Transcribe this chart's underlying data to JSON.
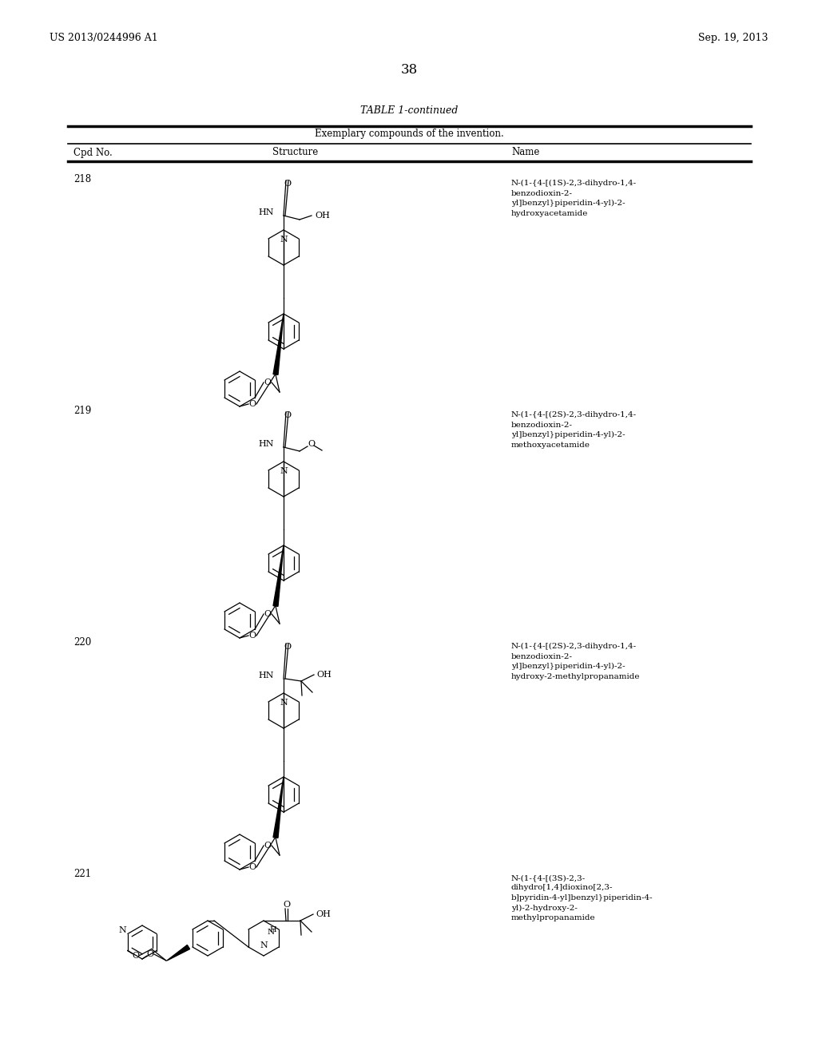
{
  "background_color": "#ffffff",
  "header_left": "US 2013/0244996 A1",
  "header_right": "Sep. 19, 2013",
  "page_number": "38",
  "table_title": "TABLE 1-continued",
  "table_subtitle": "Exemplary compounds of the invention.",
  "col_headers": [
    "Cpd No.",
    "Structure",
    "Name"
  ],
  "compounds": [
    {
      "number": "218",
      "name": "N-(1-{4-[(1S)-2,3-dihydro-1,4-\nbenzodioxin-2-\nyl]benzyl}piperidin-4-yl)-2-\nhydroxyacetamide"
    },
    {
      "number": "219",
      "name": "N-(1-{4-[(2S)-2,3-dihydro-1,4-\nbenzodioxin-2-\nyl]benzyl}piperidin-4-yl)-2-\nmethoxyacetamide"
    },
    {
      "number": "220",
      "name": "N-(1-{4-[(2S)-2,3-dihydro-1,4-\nbenzodioxin-2-\nyl]benzyl}piperidin-4-yl)-2-\nhydroxy-2-methylpropanamide"
    },
    {
      "number": "221",
      "name": "N-(1-{4-[(3S)-2,3-\ndihydro[1,4]dioxino[2,3-\nb]pyridin-4-yl]benzyl}piperidin-4-\nyl)-2-hydroxy-2-\nmethylpropanamide"
    }
  ]
}
